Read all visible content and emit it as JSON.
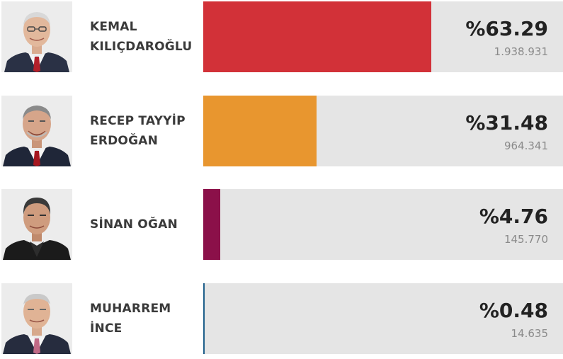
{
  "candidates": [
    {
      "name_line1": "KEMAL",
      "name_line2": "KILIÇDAROĞLU",
      "percent_text": "%63.29",
      "votes_text": "1.938.931",
      "share": 0.6329,
      "color": "#d23138",
      "portrait": "kemal-kilicdaroglu-photo"
    },
    {
      "name_line1": "RECEP TAYYİP",
      "name_line2": "ERDOĞAN",
      "percent_text": "%31.48",
      "votes_text": "964.341",
      "share": 0.3148,
      "color": "#e8962f",
      "portrait": "recep-tayyip-erdogan-photo"
    },
    {
      "name_line1": "SİNAN OĞAN",
      "name_line2": "",
      "percent_text": "%4.76",
      "votes_text": "145.770",
      "share": 0.0476,
      "color": "#8b1049",
      "portrait": "sinan-ogan-photo"
    },
    {
      "name_line1": "MUHARREM",
      "name_line2": "İNCE",
      "percent_text": "%0.48",
      "votes_text": "14.635",
      "share": 0.0048,
      "color": "#1f5f8b",
      "portrait": "muharrem-ince-photo"
    }
  ]
}
